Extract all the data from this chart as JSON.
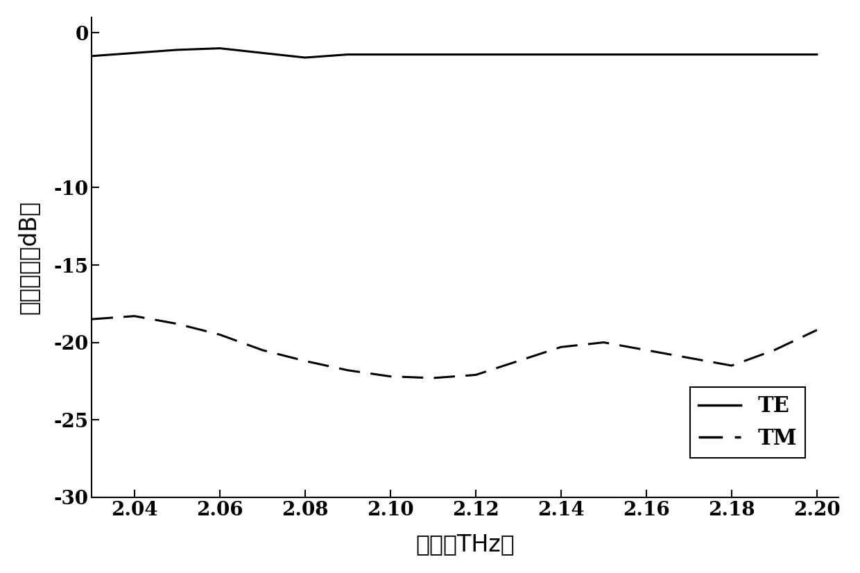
{
  "te_x": [
    2.03,
    2.04,
    2.05,
    2.06,
    2.07,
    2.08,
    2.09,
    2.1,
    2.11,
    2.12,
    2.13,
    2.14,
    2.15,
    2.16,
    2.17,
    2.18,
    2.19,
    2.2
  ],
  "te_y": [
    -1.5,
    -1.3,
    -1.1,
    -1.0,
    -1.3,
    -1.6,
    -1.4,
    -1.4,
    -1.4,
    -1.4,
    -1.4,
    -1.4,
    -1.4,
    -1.4,
    -1.4,
    -1.4,
    -1.4,
    -1.4
  ],
  "tm_x": [
    2.03,
    2.04,
    2.05,
    2.06,
    2.07,
    2.08,
    2.09,
    2.1,
    2.11,
    2.12,
    2.13,
    2.14,
    2.15,
    2.16,
    2.17,
    2.18,
    2.19,
    2.2
  ],
  "tm_y": [
    -18.5,
    -18.3,
    -18.8,
    -19.5,
    -20.5,
    -21.2,
    -21.8,
    -22.2,
    -22.3,
    -22.1,
    -21.2,
    -20.3,
    -20.0,
    -20.5,
    -21.0,
    -21.5,
    -20.5,
    -19.2
  ],
  "xlim": [
    2.03,
    2.205
  ],
  "ylim": [
    -30,
    1
  ],
  "xticks": [
    2.04,
    2.06,
    2.08,
    2.1,
    2.12,
    2.14,
    2.16,
    2.18,
    2.2
  ],
  "yticks": [
    0,
    -10,
    -15,
    -20,
    -25,
    -30
  ],
  "xlabel": "频率（THz）",
  "ylabel": "输出效率（dB）",
  "line_color": "#000000",
  "background_color": "#ffffff",
  "legend_te": "TE",
  "legend_tm": "TM",
  "fontsize_label": 24,
  "fontsize_tick": 20,
  "fontsize_legend": 22,
  "linewidth_solid": 2.2,
  "linewidth_dashed": 2.2
}
